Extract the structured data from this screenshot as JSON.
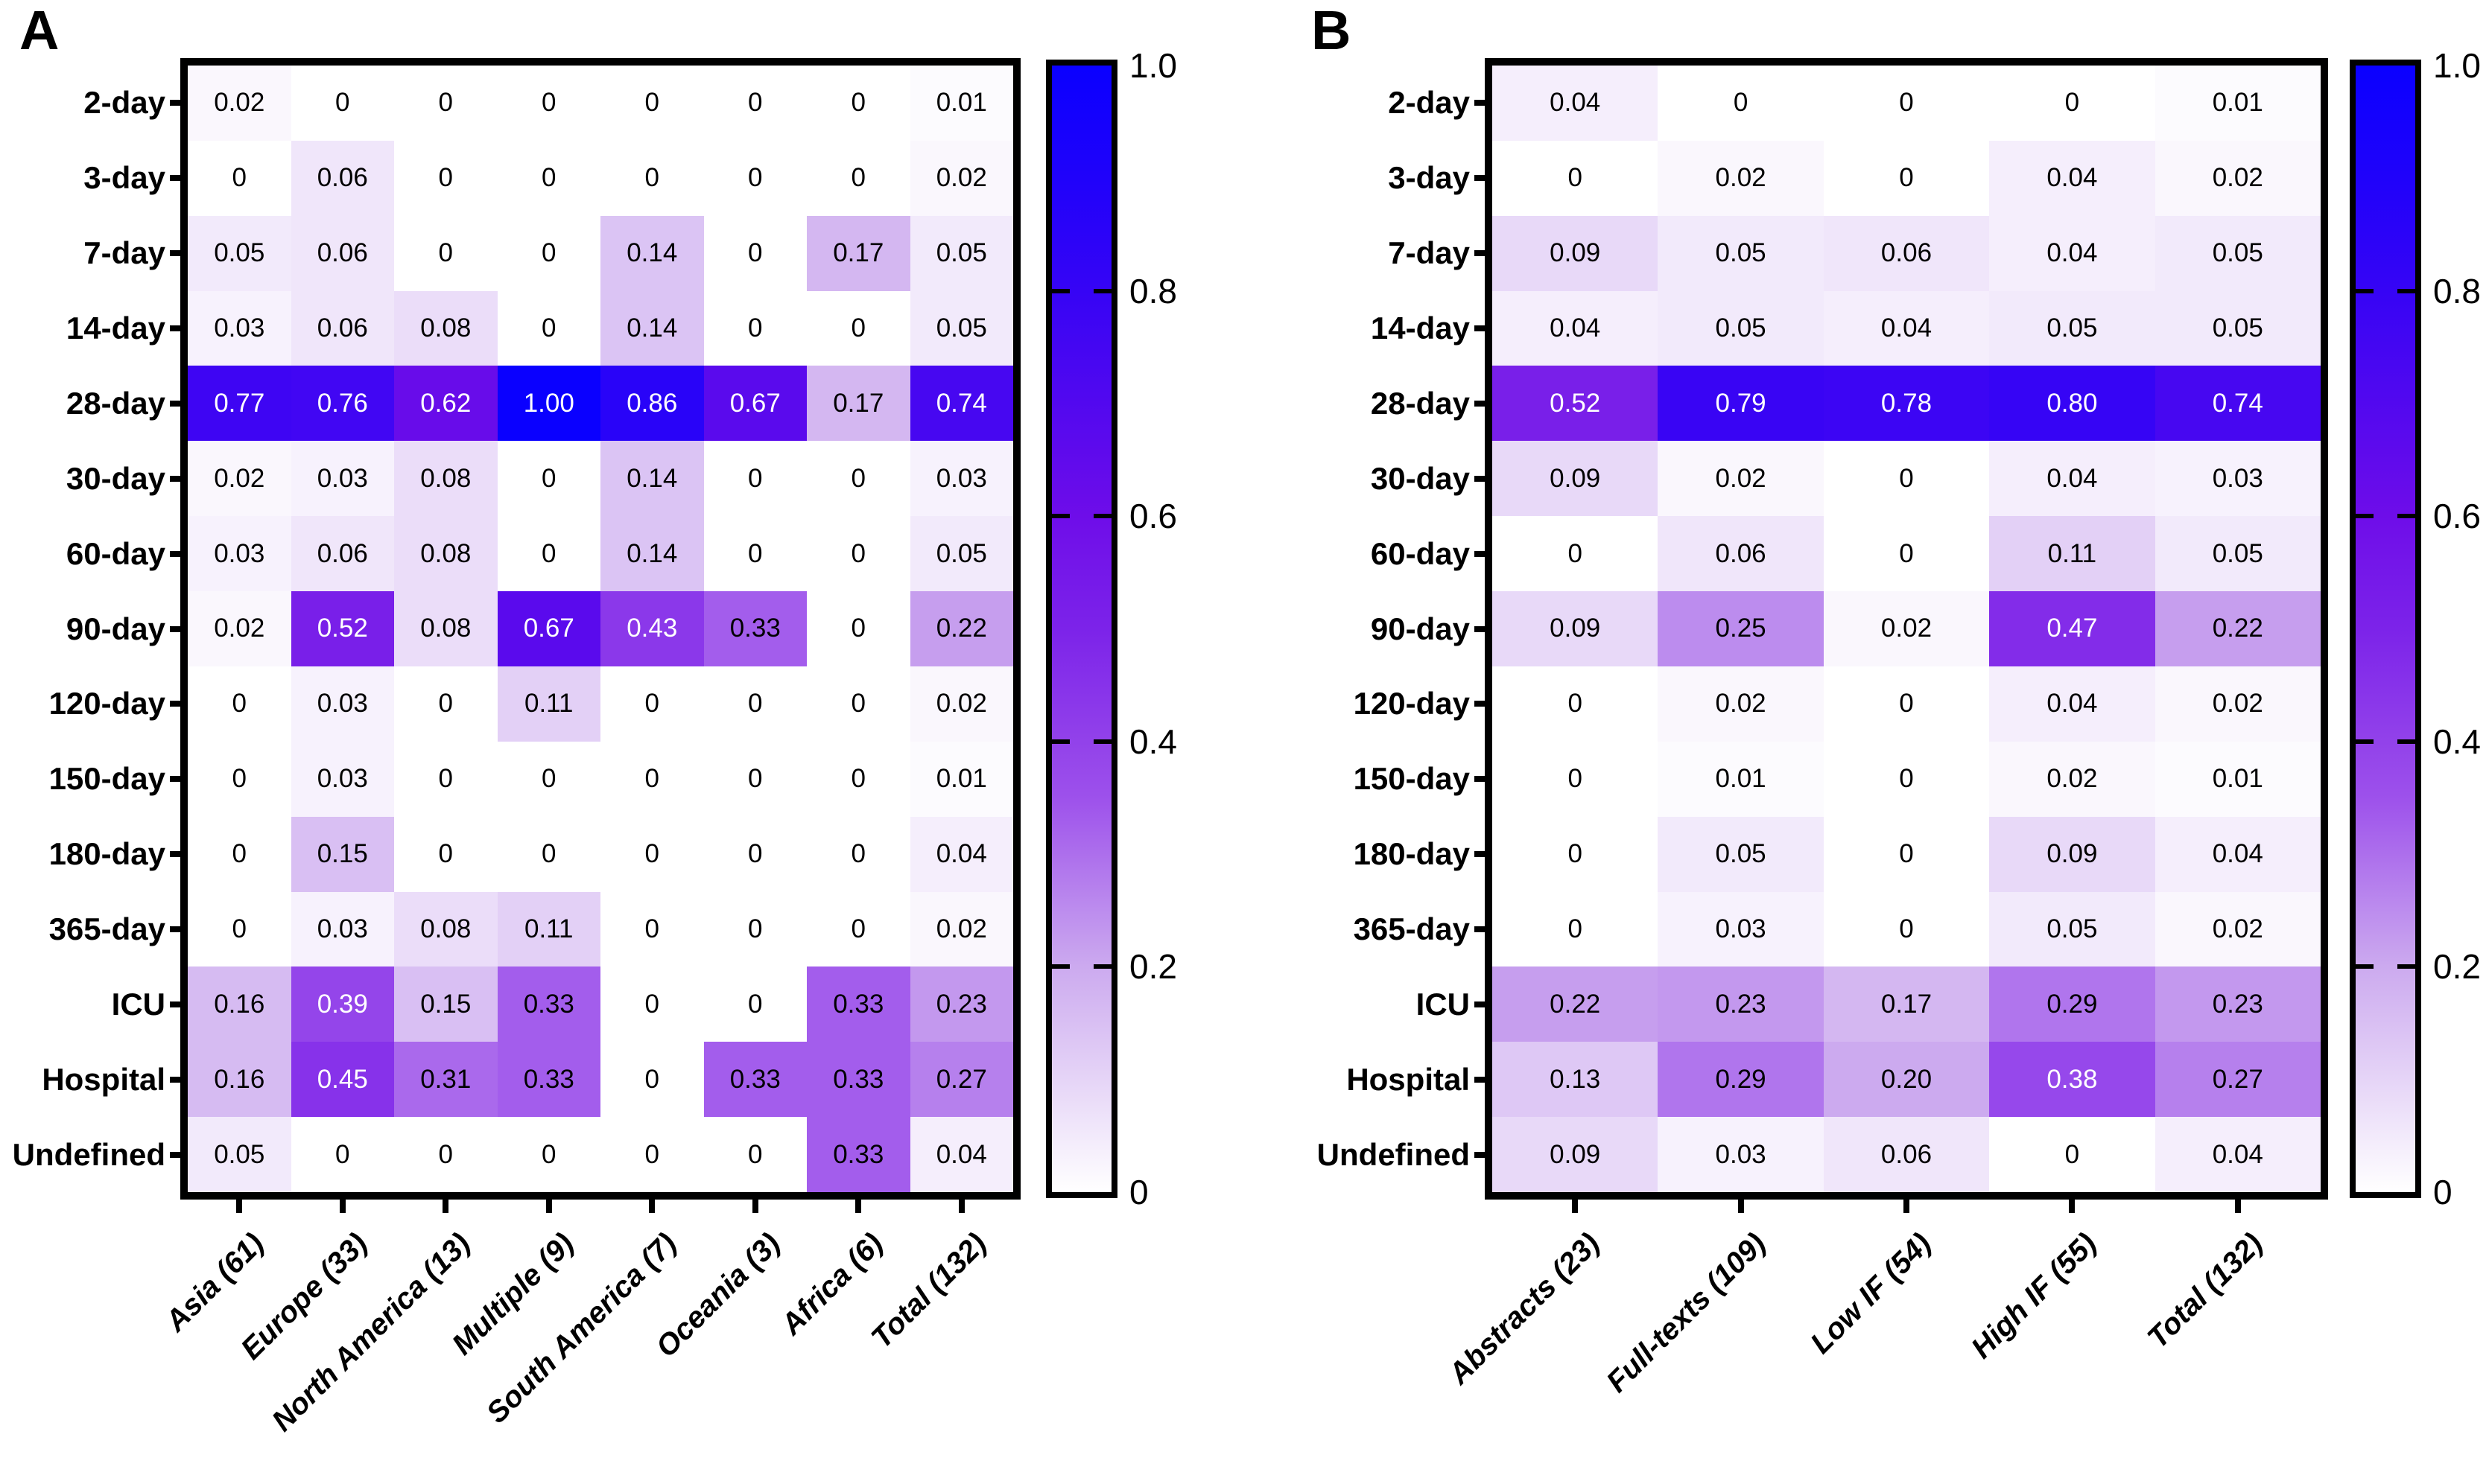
{
  "colors": {
    "background": "#ffffff",
    "frame": "#000000",
    "cell_text_dark": "#000000",
    "cell_text_light": "#ffffff",
    "white_text_threshold": 0.35,
    "colormap_stops": [
      [
        0.0,
        "#ffffff"
      ],
      [
        0.2,
        "#ccaaef"
      ],
      [
        0.35,
        "#9d51eb"
      ],
      [
        0.5,
        "#7c23e9"
      ],
      [
        0.6,
        "#6e0de9"
      ],
      [
        0.8,
        "#3604f5"
      ],
      [
        1.0,
        "#0a00ff"
      ]
    ]
  },
  "chart_data": [
    {
      "type": "heatmap",
      "panel": "A",
      "columns": [
        "Asia (61)",
        "Europe (33)",
        "North America (13)",
        "Multiple (9)",
        "South America (7)",
        "Oceania (3)",
        "Africa (6)",
        "Total (132)"
      ],
      "rows": [
        "2-day",
        "3-day",
        "7-day",
        "14-day",
        "28-day",
        "30-day",
        "60-day",
        "90-day",
        "120-day",
        "150-day",
        "180-day",
        "365-day",
        "ICU",
        "Hospital",
        "Undefined"
      ],
      "values": [
        [
          0.02,
          0,
          0,
          0,
          0,
          0,
          0,
          0.01
        ],
        [
          0,
          0.06,
          0,
          0,
          0,
          0,
          0,
          0.02
        ],
        [
          0.05,
          0.06,
          0,
          0,
          0.14,
          0,
          0.17,
          0.05
        ],
        [
          0.03,
          0.06,
          0.08,
          0,
          0.14,
          0,
          0,
          0.05
        ],
        [
          0.77,
          0.76,
          0.62,
          1.0,
          0.86,
          0.67,
          0.17,
          0.74
        ],
        [
          0.02,
          0.03,
          0.08,
          0,
          0.14,
          0,
          0,
          0.03
        ],
        [
          0.03,
          0.06,
          0.08,
          0,
          0.14,
          0,
          0,
          0.05
        ],
        [
          0.02,
          0.52,
          0.08,
          0.67,
          0.43,
          0.33,
          0,
          0.22
        ],
        [
          0,
          0.03,
          0,
          0.11,
          0,
          0,
          0,
          0.02
        ],
        [
          0,
          0.03,
          0,
          0,
          0,
          0,
          0,
          0.01
        ],
        [
          0,
          0.15,
          0,
          0,
          0,
          0,
          0,
          0.04
        ],
        [
          0,
          0.03,
          0.08,
          0.11,
          0,
          0,
          0,
          0.02
        ],
        [
          0.16,
          0.39,
          0.15,
          0.33,
          0,
          0,
          0.33,
          0.23
        ],
        [
          0.16,
          0.45,
          0.31,
          0.33,
          0,
          0.33,
          0.33,
          0.27
        ],
        [
          0.05,
          0,
          0,
          0,
          0,
          0,
          0.33,
          0.04
        ]
      ],
      "value_range": [
        0,
        1
      ],
      "colorbar_ticks": [
        "1.0",
        "0.8",
        "0.6",
        "0.4",
        "0.2",
        "0"
      ],
      "legend_position": "right"
    },
    {
      "type": "heatmap",
      "panel": "B",
      "columns": [
        "Abstracts (23)",
        "Full-texts (109)",
        "Low IF (54)",
        "High IF (55)",
        "Total (132)"
      ],
      "rows": [
        "2-day",
        "3-day",
        "7-day",
        "14-day",
        "28-day",
        "30-day",
        "60-day",
        "90-day",
        "120-day",
        "150-day",
        "180-day",
        "365-day",
        "ICU",
        "Hospital",
        "Undefined"
      ],
      "values": [
        [
          0.04,
          0,
          0,
          0,
          0.01
        ],
        [
          0,
          0.02,
          0,
          0.04,
          0.02
        ],
        [
          0.09,
          0.05,
          0.06,
          0.04,
          0.05
        ],
        [
          0.04,
          0.05,
          0.04,
          0.05,
          0.05
        ],
        [
          0.52,
          0.79,
          0.78,
          0.8,
          0.74
        ],
        [
          0.09,
          0.02,
          0,
          0.04,
          0.03
        ],
        [
          0,
          0.06,
          0,
          0.11,
          0.05
        ],
        [
          0.09,
          0.25,
          0.02,
          0.47,
          0.22
        ],
        [
          0,
          0.02,
          0,
          0.04,
          0.02
        ],
        [
          0,
          0.01,
          0,
          0.02,
          0.01
        ],
        [
          0,
          0.05,
          0,
          0.09,
          0.04
        ],
        [
          0,
          0.03,
          0,
          0.05,
          0.02
        ],
        [
          0.22,
          0.23,
          0.17,
          0.29,
          0.23
        ],
        [
          0.13,
          0.29,
          0.2,
          0.38,
          0.27
        ],
        [
          0.09,
          0.03,
          0.06,
          0,
          0.04
        ]
      ],
      "value_range": [
        0,
        1
      ],
      "colorbar_ticks": [
        "1.0",
        "0.8",
        "0.6",
        "0.4",
        "0.2",
        "0"
      ],
      "legend_position": "right"
    }
  ]
}
